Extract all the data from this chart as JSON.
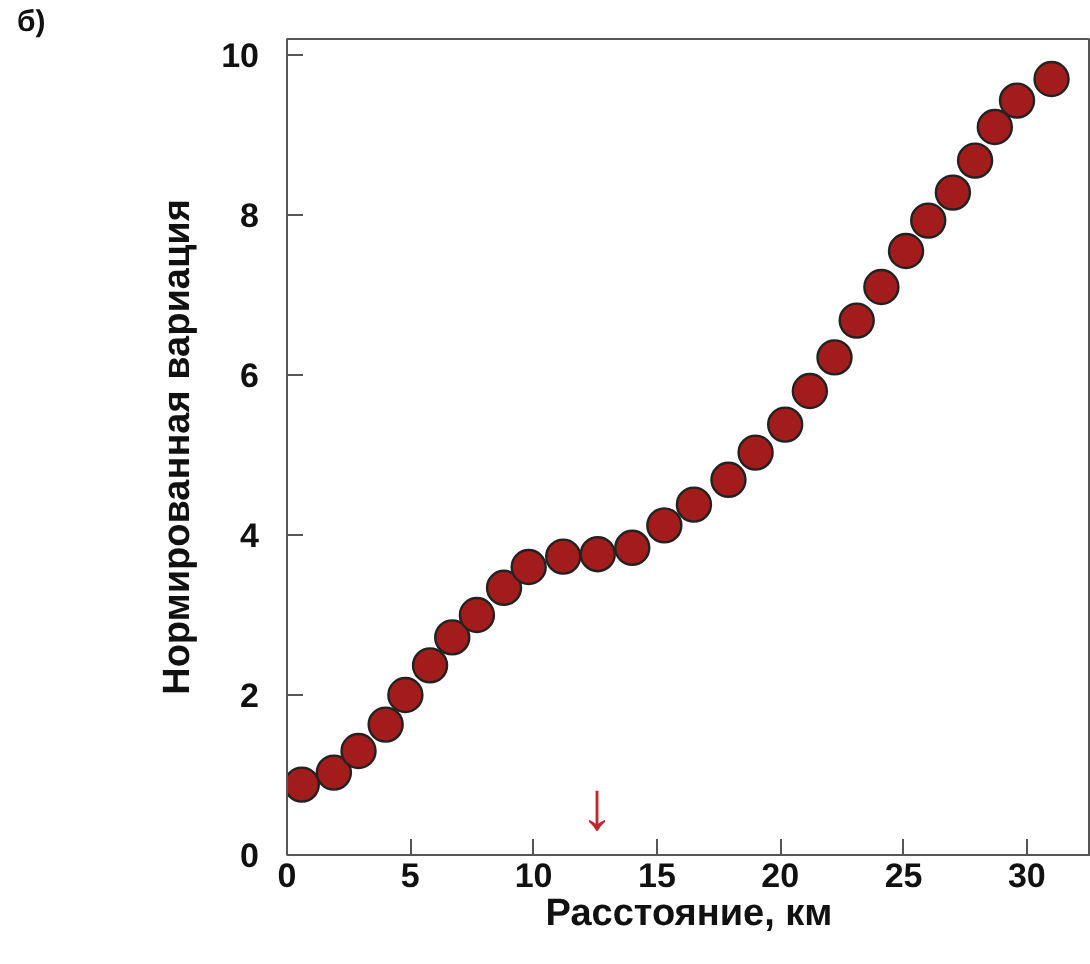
{
  "chart_data": {
    "type": "scatter",
    "xlabel": "Расстояние, км",
    "ylabel": "Нормированная вариация",
    "annotations": [
      "б)",
      "↓"
    ],
    "x": [
      0.6,
      1.9,
      2.9,
      4.0,
      4.8,
      5.8,
      6.7,
      7.7,
      8.8,
      9.8,
      11.2,
      12.6,
      14.0,
      15.3,
      16.5,
      17.9,
      19.0,
      20.2,
      21.2,
      22.2,
      23.1,
      24.1,
      25.1,
      26.0,
      27.0,
      27.9,
      28.7,
      29.6,
      31.0
    ],
    "series": [
      {
        "color": "#a31c1c",
        "values": [
          0.88,
          1.03,
          1.3,
          1.63,
          2.0,
          2.37,
          2.72,
          3.0,
          3.34,
          3.6,
          3.73,
          3.76,
          3.84,
          4.12,
          4.38,
          4.69,
          5.03,
          5.38,
          5.8,
          6.22,
          6.68,
          7.1,
          7.55,
          7.93,
          8.28,
          8.68,
          9.1,
          9.43,
          9.7
        ]
      }
    ],
    "xlim": [
      0,
      32.6
    ],
    "ylim": [
      0,
      10.2
    ],
    "xticks": [
      0,
      5,
      10,
      15,
      20,
      25,
      30
    ],
    "yticks": [
      0,
      2,
      4,
      6,
      8,
      10
    ],
    "grid": false,
    "marker": "circle"
  }
}
